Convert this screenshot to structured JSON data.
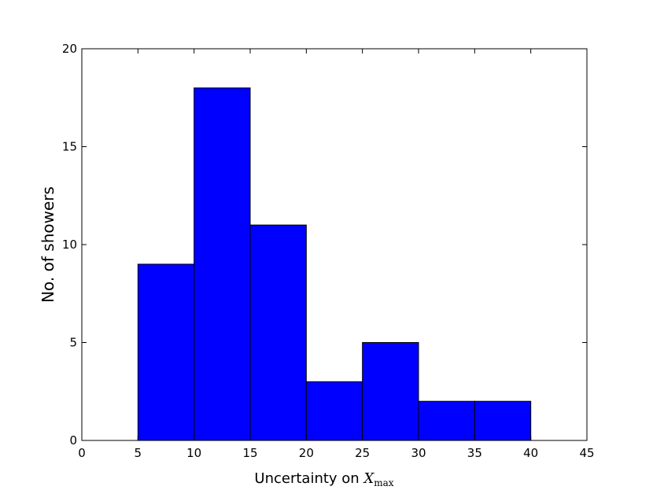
{
  "chart_data": {
    "type": "histogram",
    "xlabel": [
      "Uncertainty on ",
      "X",
      "max"
    ],
    "ylabel": "No. of showers",
    "bins": [
      5,
      10,
      15,
      20,
      25,
      30,
      35,
      40
    ],
    "values": [
      9,
      18,
      11,
      3,
      5,
      2,
      2
    ],
    "color": "#0000ff",
    "xlim": [
      0,
      45
    ],
    "xticks": [
      0,
      5,
      10,
      15,
      20,
      25,
      30,
      35,
      40,
      45
    ],
    "ylim": [
      0,
      20
    ],
    "yticks": [
      0,
      5,
      10,
      15,
      20
    ]
  }
}
